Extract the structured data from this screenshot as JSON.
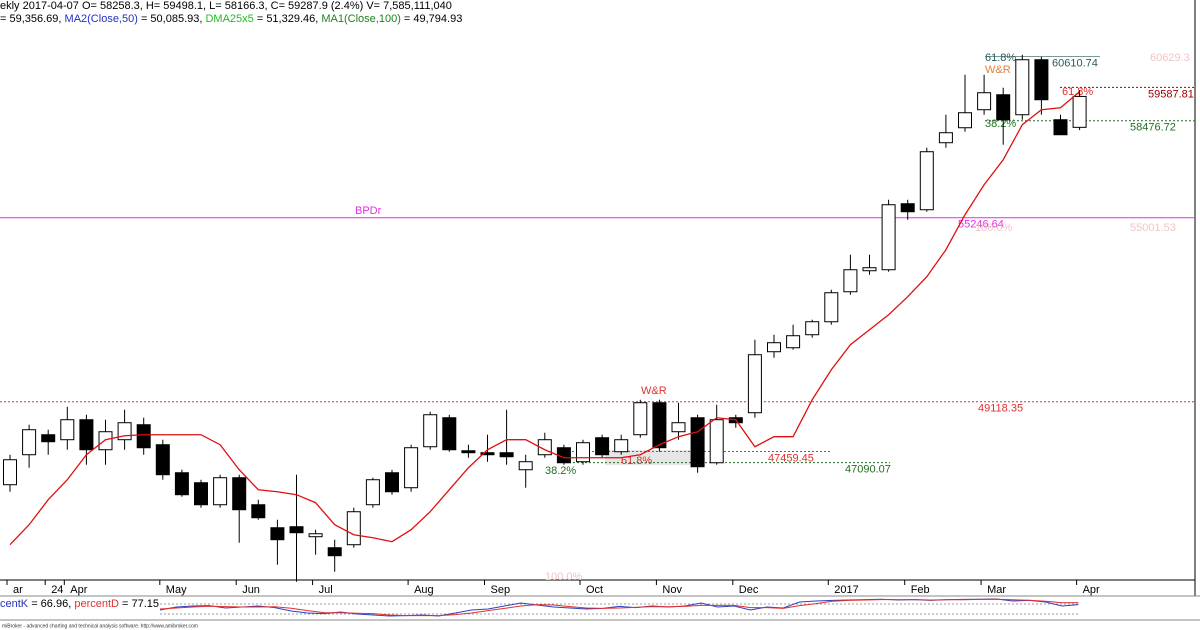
{
  "chart_data": [
    {
      "type": "candlestick",
      "header": [
        [
          {
            "text": "ekly 2017-04-07 O= 58258.3, H= 59498.1, L= 58166.3, C= 59287.9 (2.4%) V= 7,585,111,040",
            "color": "#000000"
          }
        ],
        [
          {
            "text": "= 59,356.69, ",
            "color": "#000000"
          },
          {
            "text": "MA2(Close,50)",
            "color": "#2030c0"
          },
          {
            "text": " = 50,085.93, ",
            "color": "#000000"
          },
          {
            "text": "DMA25x5",
            "color": "#20c020"
          },
          {
            "text": " = 51,329.46, ",
            "color": "#000000"
          },
          {
            "text": "MA1(Close,100)",
            "color": "#208020"
          },
          {
            "text": " = 49,794.93",
            "color": "#000000"
          }
        ]
      ],
      "categories": [
        "ar",
        null,
        "24",
        "Apr",
        null,
        null,
        null,
        null,
        "May",
        null,
        null,
        null,
        "Jun",
        null,
        null,
        null,
        "Jul",
        null,
        null,
        null,
        null,
        "Aug",
        null,
        null,
        null,
        "Sep",
        null,
        null,
        null,
        null,
        "Oct",
        null,
        null,
        null,
        "Nov",
        null,
        null,
        null,
        "Dec",
        null,
        null,
        null,
        null,
        "2017",
        null,
        null,
        null,
        "Feb",
        null,
        null,
        null,
        "Mar",
        null,
        null,
        null,
        null,
        "Apr"
      ],
      "open": [
        46354,
        47353,
        48019,
        47853,
        48519,
        47519,
        47853,
        48352,
        47686,
        46753,
        46420,
        45687,
        46587,
        45687,
        44921,
        44955,
        44622,
        44255,
        44355,
        45687,
        46753,
        46254,
        47619,
        48585,
        47486,
        47420,
        47420,
        46853,
        47353,
        47586,
        47120,
        47919,
        47453,
        48019,
        49085,
        48119,
        48585,
        47086,
        48585,
        48752,
        50784,
        50917,
        51350,
        51783,
        52782,
        53482,
        53515,
        55714,
        55514,
        57746,
        58245,
        58845,
        59344,
        58678,
        60510,
        58512,
        58258.3
      ],
      "high": [
        47353,
        48352,
        48186,
        48952,
        48685,
        48519,
        48852,
        48585,
        47853,
        46853,
        46520,
        46687,
        46687,
        45854,
        45188,
        46687,
        44855,
        44522,
        45588,
        46587,
        46853,
        47686,
        48785,
        48685,
        47686,
        48019,
        48852,
        47353,
        48086,
        47686,
        47853,
        48019,
        48019,
        49185,
        49185,
        49085,
        48685,
        49018,
        48685,
        51184,
        51350,
        51683,
        51850,
        52849,
        54015,
        54015,
        55847,
        55847,
        57579,
        58678,
        60011,
        60011,
        59578,
        60677,
        60611,
        58678,
        59498.1
      ],
      "low": [
        46120,
        46920,
        47353,
        47519,
        47020,
        47020,
        47519,
        47353,
        46520,
        45954,
        45588,
        45588,
        44422,
        45188,
        43689,
        43123,
        44022,
        43456,
        44255,
        45588,
        46021,
        46120,
        47519,
        47453,
        47253,
        47120,
        47020,
        46254,
        47253,
        47020,
        47020,
        47253,
        47353,
        47919,
        47453,
        47853,
        46753,
        47020,
        48252,
        48585,
        50584,
        50850,
        51250,
        51683,
        52683,
        53349,
        53449,
        55181,
        55447,
        57579,
        58112,
        58678,
        57679,
        58512,
        58678,
        58012,
        58166.3
      ],
      "close": [
        47186,
        48186,
        47786,
        48519,
        47519,
        48119,
        48419,
        47586,
        46687,
        46021,
        45687,
        46587,
        45521,
        45254,
        44522,
        44755,
        44721,
        43989,
        45454,
        46520,
        46120,
        47586,
        48685,
        47519,
        47420,
        47353,
        47286,
        47120,
        47853,
        47086,
        47753,
        47353,
        47853,
        49085,
        47586,
        48419,
        46953,
        48519,
        48419,
        50684,
        51084,
        51317,
        51783,
        52749,
        53515,
        53582,
        55680,
        55447,
        57446,
        58079,
        58745,
        59411,
        58512,
        60510,
        59178,
        58012,
        59287.9
      ],
      "up_color": "#ffffff",
      "down_color": "#000000",
      "ma": {
        "color": "#e01010",
        "values": [
          44355,
          45021,
          45854,
          46520,
          47353,
          47853,
          47986,
          48019,
          48019,
          48019,
          48019,
          47686,
          46853,
          46187,
          46120,
          46021,
          45754,
          45021,
          44688,
          44588,
          44455,
          44855,
          45454,
          46187,
          46920,
          47519,
          47853,
          47853,
          47519,
          47253,
          47253,
          47253,
          47253,
          47353,
          47686,
          47953,
          48119,
          48585,
          48519,
          47619,
          47953,
          47953,
          49185,
          50184,
          51017,
          51517,
          52016,
          52616,
          53282,
          54181,
          55347,
          56347,
          57179,
          58345,
          58845,
          58912,
          59444
        ]
      },
      "ylim": [
        43000,
        62500
      ],
      "levels": [
        {
          "label": "55246.64",
          "value": 55246.64,
          "color": "#e030e0"
        },
        {
          "label": "49118.35",
          "value": 49118.35,
          "color": "#e03030"
        },
        {
          "label": "47459.45",
          "value": 47459.45,
          "color": "#e03030"
        },
        {
          "label": "47090.07",
          "value": 47090.07,
          "color": "#207020"
        },
        {
          "label": "60610.74",
          "value": 60610.74,
          "color": "#2a5a5a"
        },
        {
          "label": "59587.81",
          "value": 59587.81,
          "color": "#a00000"
        },
        {
          "label": "58476.72",
          "value": 58476.72,
          "color": "#207020"
        }
      ],
      "notes": [
        {
          "text": "BPDr",
          "color": "#e030e0"
        },
        {
          "text": "W&R",
          "color": "#e03030"
        },
        {
          "text": "38.2%",
          "color": "#207020"
        },
        {
          "text": "61.8%",
          "color": "#e03030"
        },
        {
          "text": "61.8%",
          "color": "#2a5a5a"
        },
        {
          "text": "W&R",
          "color": "#e08040"
        },
        {
          "text": "61.8%",
          "color": "#e03030"
        },
        {
          "text": "38.2%",
          "color": "#207020"
        },
        {
          "text": "100.0%",
          "color": "#f2c4c4"
        },
        {
          "text": "55001.53",
          "color": "#f2c4c4"
        },
        {
          "text": "60629.3",
          "color": "#f2c4c4"
        },
        {
          "text": "100.0%",
          "color": "#f2c4c4"
        }
      ]
    },
    {
      "type": "line",
      "header": [
        [
          {
            "text": "centK",
            "color": "#2030c0"
          },
          {
            "text": " = 66.96, ",
            "color": "#000000"
          },
          {
            "text": "percentD",
            "color": "#e03030"
          },
          {
            "text": " = 77.15",
            "color": "#000000"
          }
        ]
      ],
      "series": [
        {
          "color": "#3040c0",
          "values": [
            40,
            55,
            60,
            62,
            50,
            55,
            60,
            52,
            35,
            25,
            22,
            30,
            20,
            15,
            10,
            12,
            15,
            10,
            25,
            40,
            45,
            60,
            75,
            65,
            55,
            50,
            45,
            48,
            58,
            52,
            60,
            55,
            60,
            75,
            55,
            60,
            40,
            55,
            50,
            80,
            85,
            88,
            90,
            92,
            94,
            90,
            92,
            88,
            92,
            93,
            94,
            95,
            85,
            88,
            80,
            60,
            66.96
          ]
        },
        {
          "color": "#e03030",
          "values": [
            45,
            50,
            55,
            59,
            57,
            55,
            55,
            56,
            49,
            37,
            27,
            26,
            24,
            22,
            15,
            12,
            12,
            12,
            17,
            25,
            37,
            48,
            60,
            67,
            65,
            57,
            50,
            48,
            50,
            53,
            57,
            56,
            58,
            63,
            63,
            63,
            52,
            52,
            48,
            62,
            72,
            84,
            88,
            90,
            92,
            92,
            92,
            90,
            91,
            91,
            93,
            94,
            91,
            89,
            84,
            76,
            77.15
          ]
        }
      ],
      "ylim": [
        0,
        100
      ]
    }
  ],
  "footer": "miBroker - advanced charting and technical analysis software. http://www.amibroker.com"
}
